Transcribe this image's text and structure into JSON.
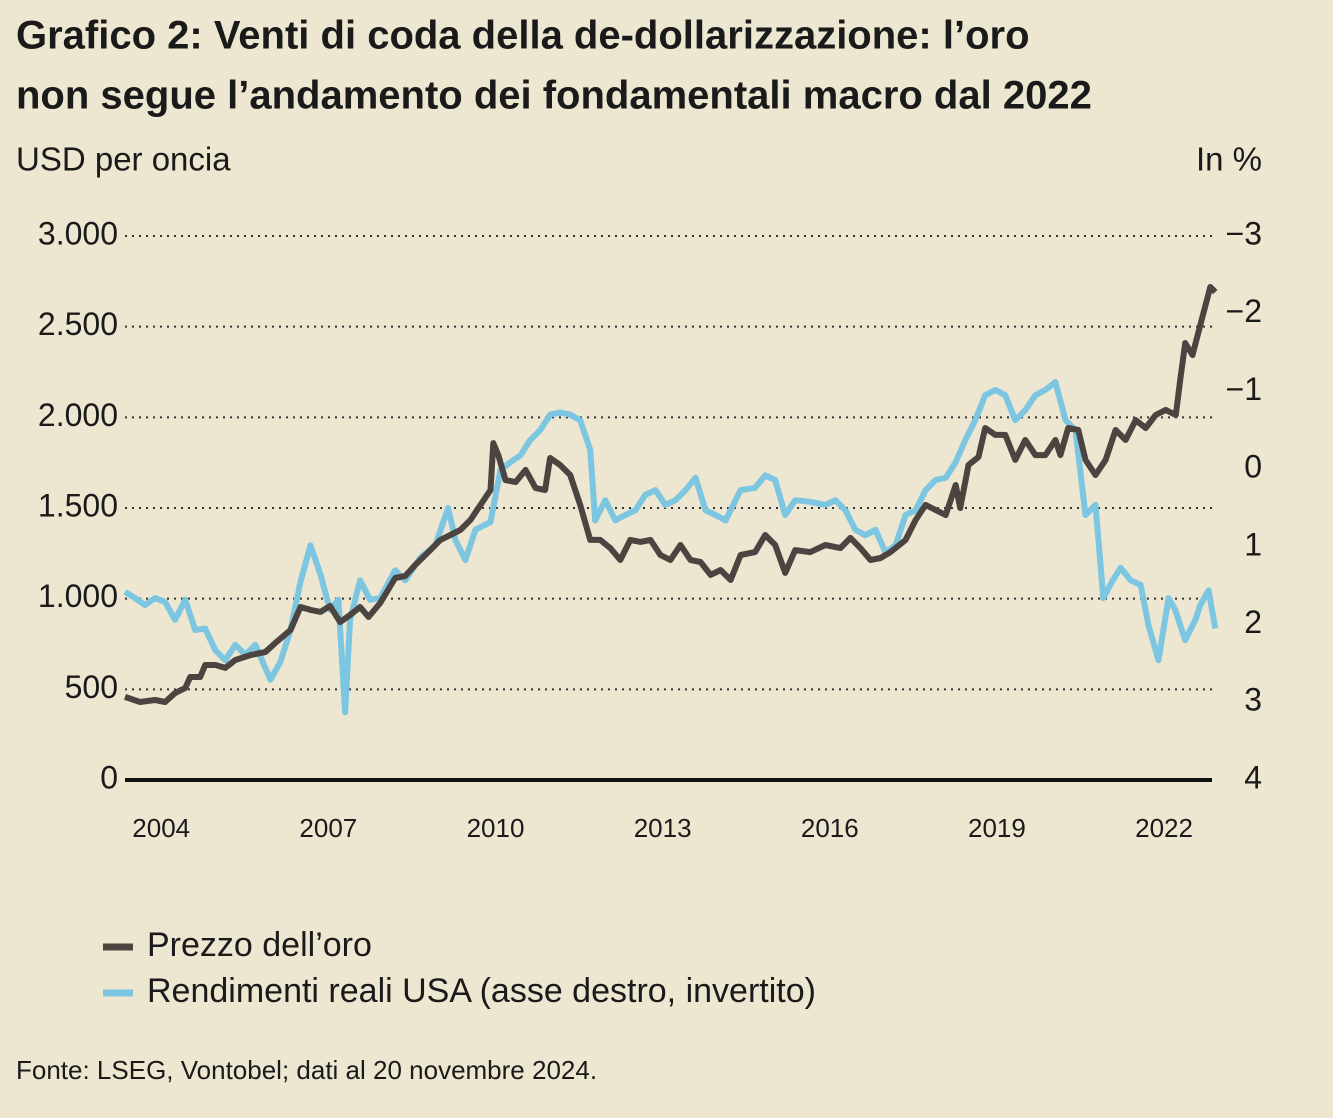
{
  "chart_data": {
    "type": "line",
    "title": [
      "Grafico 2: Venti di coda della de-dollarizzazione: l’oro",
      "non segue l’andamento dei fondamentali macro dal 2022"
    ],
    "y_label": "USD per oncia",
    "y2_label": "In %",
    "source": "Fonte: LSEG, Vontobel; dati al 20 novembre 2024.",
    "xlim": [
      2003.35,
      2022.95
    ],
    "xticks": [
      2004,
      2007,
      2010,
      2013,
      2016,
      2019,
      2022
    ],
    "ylim": [
      0,
      3000
    ],
    "yticks": [
      0,
      500,
      {
        "value": 1000,
        "label": "1.000"
      },
      {
        "value": 1500,
        "label": "1.500"
      },
      {
        "value": 2000,
        "label": "2.000"
      },
      {
        "value": 2500,
        "label": "2.500"
      },
      {
        "value": 3000,
        "label": "3.000"
      }
    ],
    "y2lim": [
      4,
      -3
    ],
    "y2ticks": [
      {
        "value": -3,
        "label": "−3"
      },
      {
        "value": -2,
        "label": "−2"
      },
      {
        "value": -1,
        "label": "−1"
      },
      0,
      1,
      2,
      3,
      4
    ],
    "grid": true,
    "legend": "bottom",
    "series": [
      {
        "name": "Prezzo dell’oro",
        "color": "#4b4441",
        "x": [
          2003.35,
          2003.62,
          2003.89,
          2004.07,
          2004.25,
          2004.43,
          2004.52,
          2004.7,
          2004.79,
          2004.97,
          2005.15,
          2005.33,
          2005.6,
          2005.87,
          2006.05,
          2006.32,
          2006.5,
          2006.68,
          2006.86,
          2007.03,
          2007.21,
          2007.39,
          2007.57,
          2007.72,
          2007.93,
          2008.2,
          2008.38,
          2008.56,
          2008.83,
          2009.01,
          2009.19,
          2009.37,
          2009.55,
          2009.73,
          2009.91,
          2009.96,
          2010.05,
          2010.18,
          2010.36,
          2010.54,
          2010.72,
          2010.89,
          2010.98,
          2011.16,
          2011.34,
          2011.52,
          2011.7,
          2011.88,
          2012.06,
          2012.24,
          2012.42,
          2012.6,
          2012.78,
          2012.96,
          2013.14,
          2013.32,
          2013.5,
          2013.68,
          2013.86,
          2014.04,
          2014.22,
          2014.4,
          2014.66,
          2014.84,
          2015.02,
          2015.2,
          2015.38,
          2015.65,
          2015.92,
          2016.19,
          2016.37,
          2016.55,
          2016.73,
          2016.91,
          2017.09,
          2017.36,
          2017.54,
          2017.72,
          2017.9,
          2018.08,
          2018.26,
          2018.34,
          2018.49,
          2018.67,
          2018.79,
          2018.97,
          2019.15,
          2019.33,
          2019.51,
          2019.69,
          2019.87,
          2020.05,
          2020.14,
          2020.28,
          2020.46,
          2020.59,
          2020.77,
          2020.95,
          2021.13,
          2021.31,
          2021.49,
          2021.67,
          2021.85,
          2022.03,
          2022.21,
          2022.29,
          2022.38,
          2022.51,
          2022.65,
          2022.83,
          2022.92
        ],
        "values": [
          458,
          430,
          441,
          430,
          480,
          507,
          568,
          568,
          634,
          634,
          618,
          662,
          689,
          706,
          756,
          827,
          954,
          938,
          927,
          960,
          871,
          910,
          954,
          899,
          976,
          1114,
          1125,
          1186,
          1268,
          1324,
          1351,
          1379,
          1434,
          1517,
          1599,
          1858,
          1792,
          1654,
          1643,
          1710,
          1610,
          1599,
          1776,
          1737,
          1682,
          1517,
          1324,
          1324,
          1279,
          1213,
          1324,
          1313,
          1324,
          1241,
          1213,
          1296,
          1213,
          1202,
          1131,
          1158,
          1103,
          1241,
          1257,
          1351,
          1296,
          1142,
          1268,
          1257,
          1296,
          1279,
          1335,
          1279,
          1213,
          1224,
          1257,
          1324,
          1434,
          1517,
          1489,
          1461,
          1627,
          1500,
          1737,
          1781,
          1941,
          1903,
          1903,
          1765,
          1875,
          1792,
          1792,
          1875,
          1792,
          1941,
          1930,
          1765,
          1682,
          1765,
          1930,
          1875,
          1985,
          1941,
          2013,
          2041,
          2013,
          2206,
          2410,
          2344,
          2509,
          2719,
          2691
        ]
      },
      {
        "name": "Rendimenti reali USA (asse destro, invertito)",
        "color": "#7cc6e2",
        "axis": "y2",
        "x": [
          2003.35,
          2003.53,
          2003.71,
          2003.89,
          2004.07,
          2004.25,
          2004.43,
          2004.61,
          2004.79,
          2004.97,
          2005.15,
          2005.33,
          2005.51,
          2005.69,
          2005.96,
          2006.14,
          2006.32,
          2006.5,
          2006.68,
          2006.86,
          2007.03,
          2007.18,
          2007.3,
          2007.39,
          2007.57,
          2007.75,
          2007.93,
          2008.2,
          2008.38,
          2008.65,
          2008.92,
          2009.15,
          2009.28,
          2009.46,
          2009.64,
          2009.91,
          2010.09,
          2010.27,
          2010.45,
          2010.62,
          2010.8,
          2010.98,
          2011.16,
          2011.34,
          2011.52,
          2011.7,
          2011.79,
          2011.97,
          2012.15,
          2012.33,
          2012.51,
          2012.69,
          2012.87,
          2013.05,
          2013.23,
          2013.41,
          2013.59,
          2013.77,
          2013.95,
          2014.13,
          2014.4,
          2014.66,
          2014.84,
          2015.02,
          2015.2,
          2015.38,
          2015.65,
          2015.92,
          2016.1,
          2016.28,
          2016.46,
          2016.64,
          2016.82,
          2017.0,
          2017.18,
          2017.36,
          2017.54,
          2017.72,
          2017.9,
          2018.08,
          2018.26,
          2018.43,
          2018.61,
          2018.79,
          2018.97,
          2019.15,
          2019.33,
          2019.51,
          2019.69,
          2019.87,
          2020.05,
          2020.23,
          2020.41,
          2020.59,
          2020.77,
          2020.91,
          2021.08,
          2021.22,
          2021.4,
          2021.58,
          2021.72,
          2021.9,
          2022.08,
          2022.2,
          2022.38,
          2022.56,
          2022.65,
          2022.8,
          2022.92
        ],
        "values": [
          1.58,
          1.66,
          1.75,
          1.66,
          1.71,
          1.94,
          1.68,
          2.07,
          2.05,
          2.33,
          2.46,
          2.26,
          2.39,
          2.26,
          2.71,
          2.48,
          2.07,
          1.45,
          0.98,
          1.36,
          1.81,
          1.68,
          3.13,
          1.94,
          1.43,
          1.68,
          1.66,
          1.3,
          1.43,
          1.14,
          0.98,
          0.5,
          0.91,
          1.17,
          0.78,
          0.68,
          0.01,
          -0.09,
          -0.18,
          -0.37,
          -0.5,
          -0.7,
          -0.73,
          -0.7,
          -0.63,
          -0.25,
          0.66,
          0.4,
          0.66,
          0.59,
          0.53,
          0.33,
          0.27,
          0.46,
          0.4,
          0.27,
          0.11,
          0.53,
          0.59,
          0.66,
          0.27,
          0.24,
          0.08,
          0.14,
          0.59,
          0.4,
          0.42,
          0.46,
          0.4,
          0.53,
          0.78,
          0.85,
          0.78,
          1.07,
          0.98,
          0.59,
          0.53,
          0.27,
          0.14,
          0.11,
          -0.09,
          -0.37,
          -0.63,
          -0.95,
          -1.02,
          -0.95,
          -0.63,
          -0.76,
          -0.95,
          -1.02,
          -1.12,
          -0.63,
          -0.5,
          0.59,
          0.46,
          1.66,
          1.43,
          1.27,
          1.43,
          1.49,
          2.01,
          2.46,
          1.66,
          1.81,
          2.2,
          1.94,
          1.75,
          1.56,
          2.05
        ]
      }
    ]
  }
}
